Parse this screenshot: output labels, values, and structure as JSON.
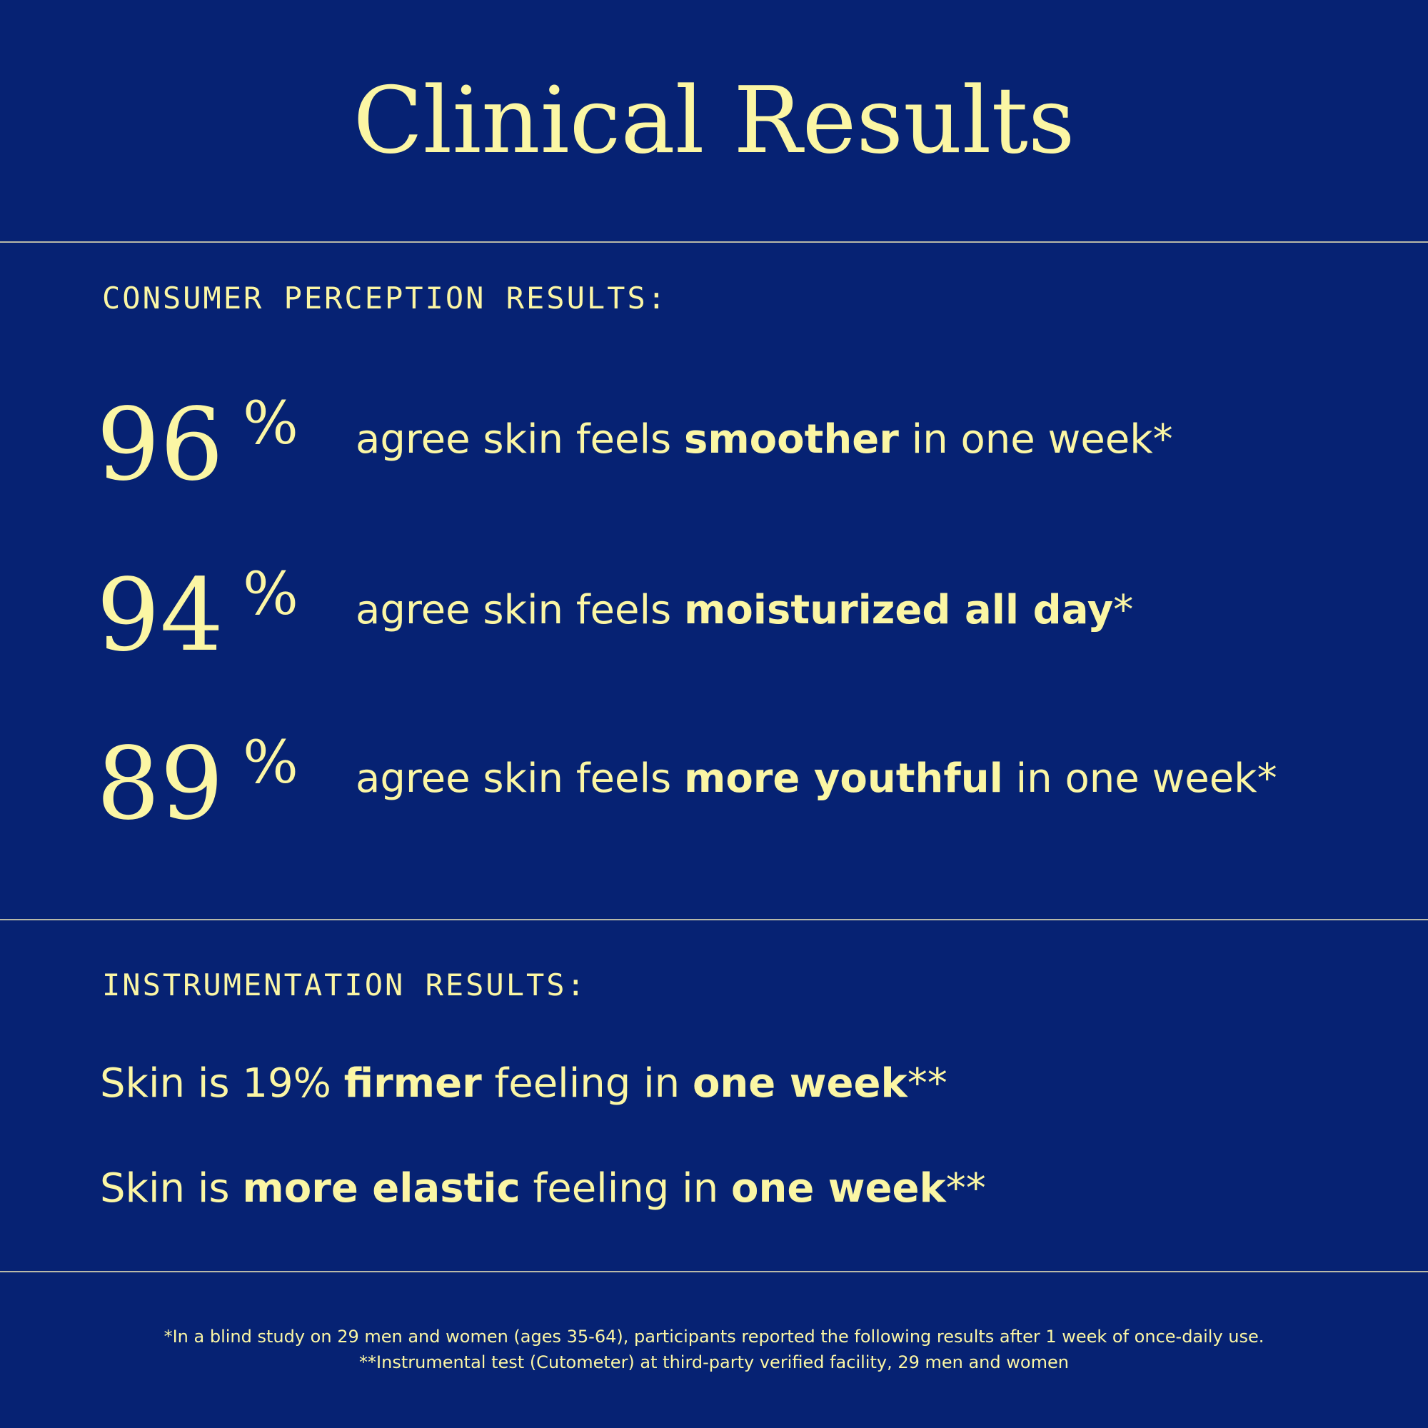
{
  "title": "Clinical Results",
  "consumer": {
    "heading": "CONSUMER PERCEPTION RESULTS:",
    "items": [
      {
        "stat": "96",
        "unit": "%",
        "text": [
          {
            "text": "agree skin feels ",
            "bold": false
          },
          {
            "text": "smoother",
            "bold": true
          },
          {
            "text": " in one week*",
            "bold": false
          }
        ]
      },
      {
        "stat": "94",
        "unit": "%",
        "text": [
          {
            "text": "agree skin feels ",
            "bold": false
          },
          {
            "text": "moisturized all day",
            "bold": true
          },
          {
            "text": "*",
            "bold": false
          }
        ]
      },
      {
        "stat": "89",
        "unit": "%",
        "text": [
          {
            "text": "agree skin feels ",
            "bold": false
          },
          {
            "text": "more youthful",
            "bold": true
          },
          {
            "text": " in one week*",
            "bold": false
          }
        ]
      }
    ]
  },
  "instrumentation": {
    "heading": "INSTRUMENTATION RESULTS:",
    "items": [
      [
        {
          "text": "Skin is 19% ",
          "bold": false
        },
        {
          "text": "firmer",
          "bold": true
        },
        {
          "text": " feeling in ",
          "bold": false
        },
        {
          "text": "one week",
          "bold": true
        },
        {
          "text": "**",
          "bold": false
        }
      ],
      [
        {
          "text": "Skin is ",
          "bold": false
        },
        {
          "text": "more elastic",
          "bold": true
        },
        {
          "text": " feeling in ",
          "bold": false
        },
        {
          "text": "one week",
          "bold": true
        },
        {
          "text": "**",
          "bold": false
        }
      ]
    ]
  },
  "footnotes": [
    "*In a blind study on 29 men and women (ages 35-64), participants reported the following results after 1 week of once-daily use.",
    "**Instrumental test (Cutometer) at third-party verified facility, 29 men and women"
  ]
}
